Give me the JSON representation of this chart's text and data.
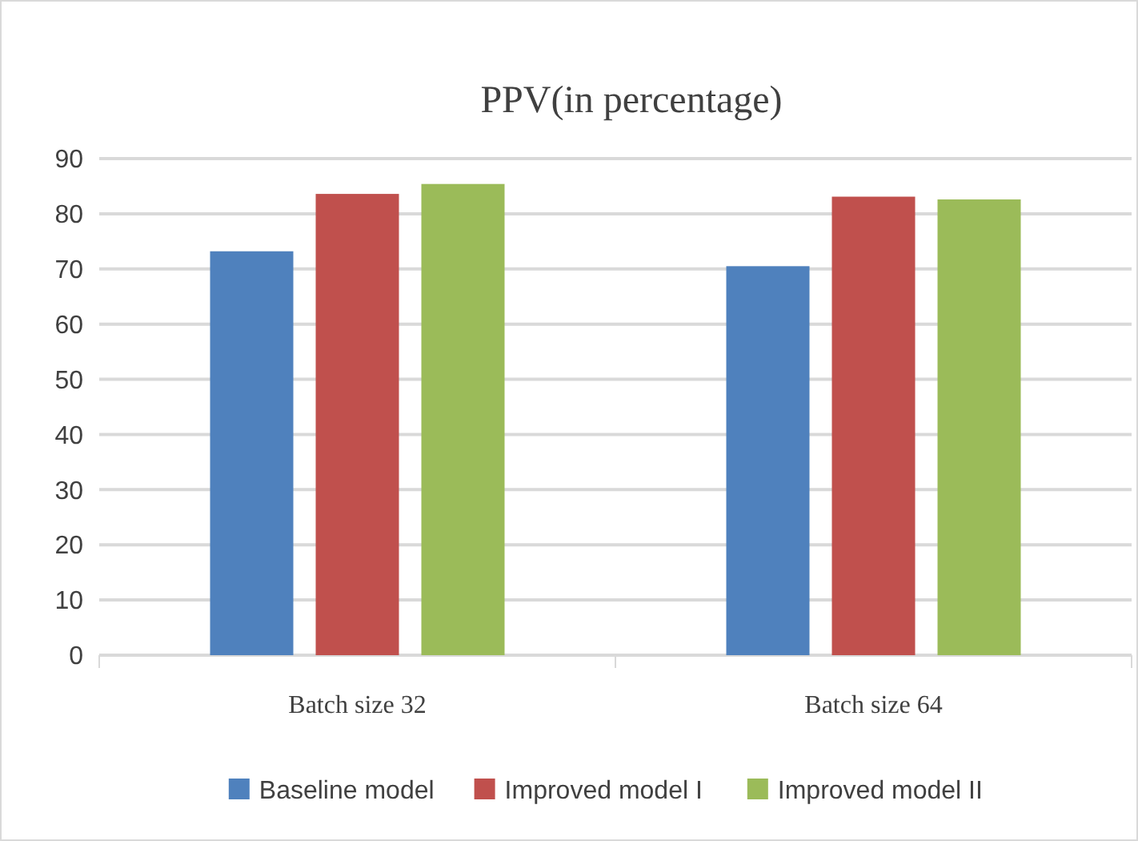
{
  "chart_data": {
    "type": "bar",
    "title": "PPV(in percentage)",
    "categories": [
      "Batch size 32",
      "Batch size 64"
    ],
    "series": [
      {
        "name": "Baseline model",
        "color": "#4f81bd",
        "values": [
          73.2,
          70.5
        ]
      },
      {
        "name": "Improved model I",
        "color": "#c0504d",
        "values": [
          83.6,
          83.1
        ]
      },
      {
        "name": "Improved model II",
        "color": "#9bbb59",
        "values": [
          85.4,
          82.6
        ]
      }
    ],
    "ylim": [
      0,
      90
    ],
    "yticks": [
      0,
      10,
      20,
      30,
      40,
      50,
      60,
      70,
      80,
      90
    ],
    "grid": "y",
    "legend": "bottom"
  }
}
